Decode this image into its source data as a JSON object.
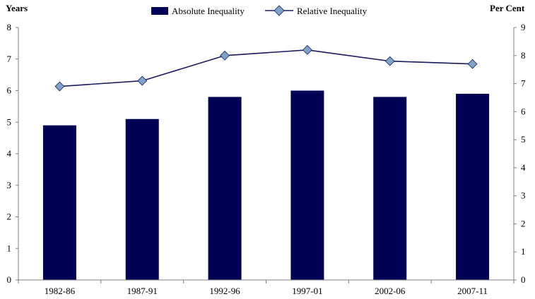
{
  "chart_data": {
    "type": "bar",
    "categories": [
      "1982-86",
      "1987-91",
      "1992-96",
      "1997-01",
      "2002-06",
      "2007-11"
    ],
    "series": [
      {
        "name": "Absolute Inequality",
        "type": "bar",
        "axis": "left",
        "values": [
          4.9,
          5.1,
          5.8,
          6.0,
          5.8,
          5.9
        ]
      },
      {
        "name": "Relative Inequality",
        "type": "line",
        "axis": "right",
        "values": [
          6.9,
          7.1,
          8.0,
          8.2,
          7.8,
          7.7
        ]
      }
    ],
    "ylabel": "Years",
    "ylabel_right": "Per Cent",
    "ylim": [
      0,
      8
    ],
    "ylim_right": [
      0,
      9
    ],
    "yticks": [
      "0",
      "1",
      "2",
      "3",
      "4",
      "5",
      "6",
      "7",
      "8"
    ],
    "yticks_right": [
      "0",
      "1",
      "2",
      "3",
      "4",
      "5",
      "6",
      "7",
      "8",
      "9"
    ],
    "grid": false,
    "legend_position": "top",
    "colors": {
      "bar": "#000055",
      "line": "#1a1a5e",
      "marker": "#7fa3c8"
    }
  }
}
